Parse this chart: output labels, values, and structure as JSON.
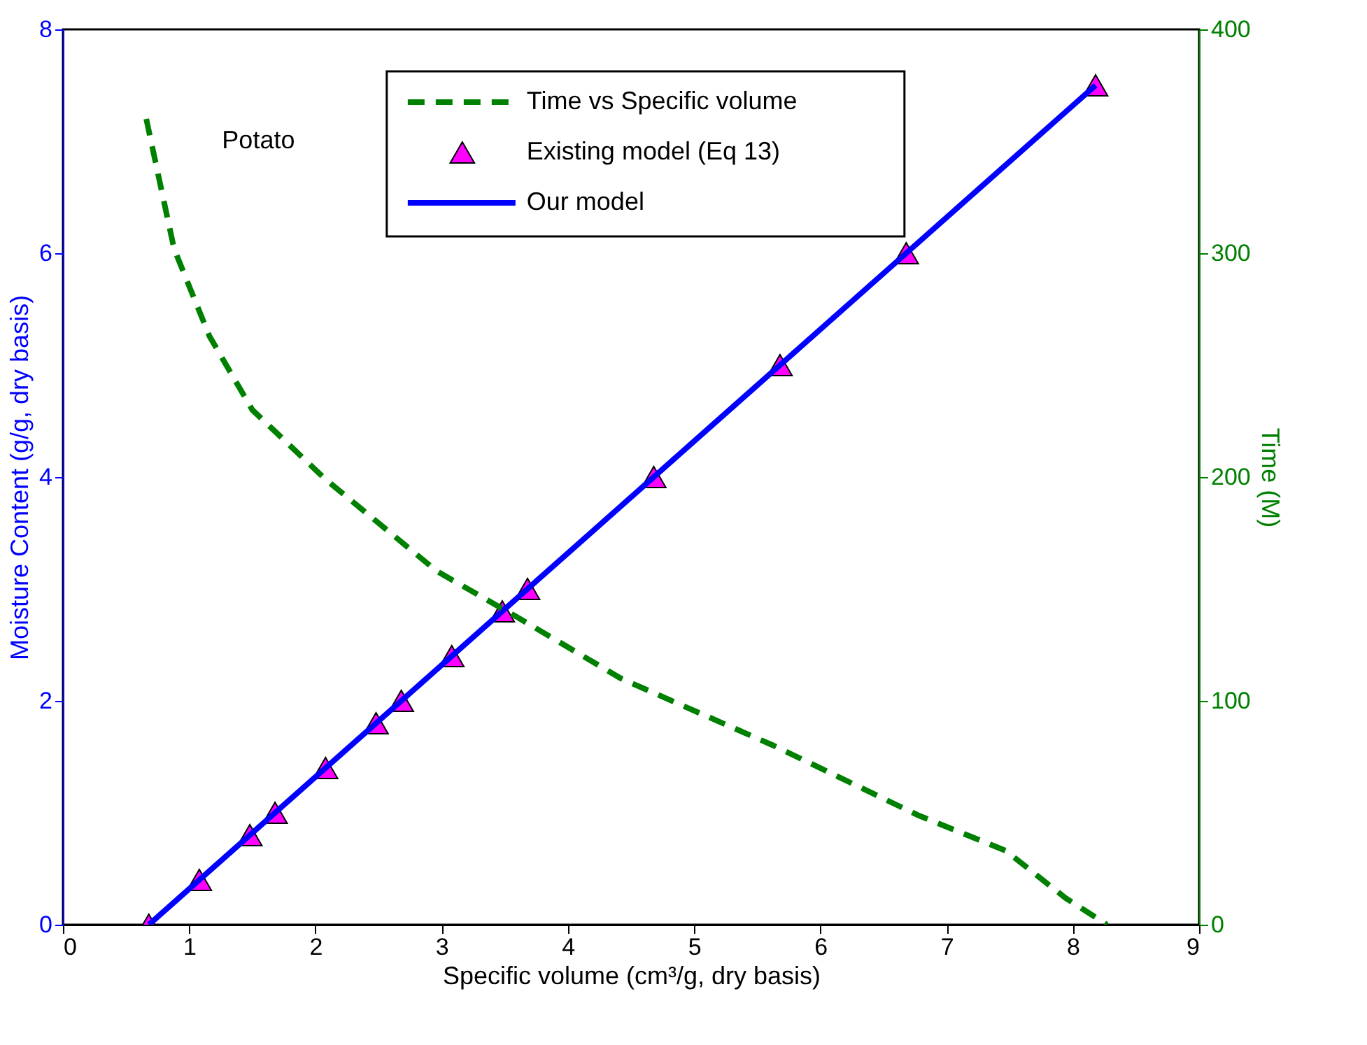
{
  "chart_data": {
    "type": "line",
    "xlabel": "Specific volume (cm³/g, dry basis)",
    "ylabel": "Moisture Content (g/g, dry basis)",
    "y2label": "Time (M)",
    "xlim": [
      0,
      9
    ],
    "xticks": [
      0,
      1,
      2,
      3,
      4,
      5,
      6,
      7,
      8,
      9
    ],
    "ylim": [
      0,
      8
    ],
    "yticks": [
      0,
      2,
      4,
      6,
      8
    ],
    "y2lim": [
      0,
      400
    ],
    "y2ticks": [
      0,
      100,
      200,
      300,
      400
    ],
    "grid": false,
    "legend": "top",
    "annotations": [
      "Potato"
    ],
    "series": [
      {
        "name": "Time vs Specific volume",
        "axis": "y2",
        "line_style": "dashed",
        "color": "#008000",
        "x": [
          0.66,
          0.88,
          1.16,
          1.5,
          2.08,
          2.96,
          3.58,
          4.42,
          5.63,
          6.77,
          7.47,
          7.94,
          8.27
        ],
        "values": [
          360,
          302,
          263,
          230,
          199,
          158,
          138,
          110,
          80,
          49,
          33,
          12,
          0
        ]
      },
      {
        "name": "Existing model (Eq 13)",
        "type": "scatter",
        "marker": "triangle",
        "color": "#ff00ff",
        "x": [
          0.68,
          1.08,
          1.48,
          1.68,
          2.08,
          2.48,
          2.68,
          3.08,
          3.48,
          3.68,
          4.68,
          5.68,
          6.68,
          8.18
        ],
        "values": [
          0,
          0.4,
          0.8,
          1.0,
          1.4,
          1.8,
          2.0,
          2.4,
          2.8,
          3.0,
          4.0,
          5.0,
          6.0,
          7.5
        ]
      },
      {
        "name": "Our model",
        "line_style": "solid",
        "color": "#0000ff",
        "x": [
          0.68,
          8.18
        ],
        "values": [
          0,
          7.5
        ]
      }
    ]
  }
}
